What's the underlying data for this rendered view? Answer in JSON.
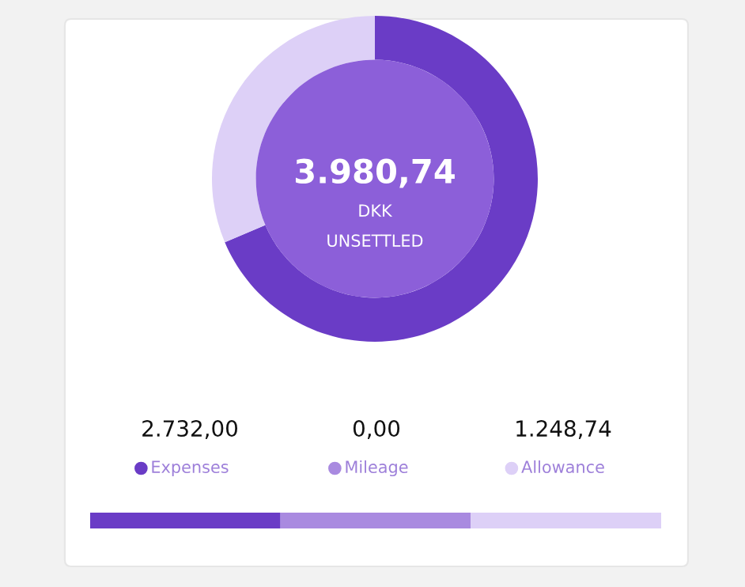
{
  "chart_data": {
    "type": "donut",
    "categories": [
      "Expenses",
      "Mileage",
      "Allowance"
    ],
    "values": [
      2732.0,
      0.0,
      1248.74
    ],
    "value_labels": [
      "2.732,00",
      "0,00",
      "1.248,74"
    ],
    "colors": [
      "#6a3cc6",
      "#a98ae0",
      "#ddd0f7"
    ],
    "annotations": [
      "3.980,74",
      "DKK",
      "UNSETTLED"
    ],
    "legend": "bottom"
  }
}
